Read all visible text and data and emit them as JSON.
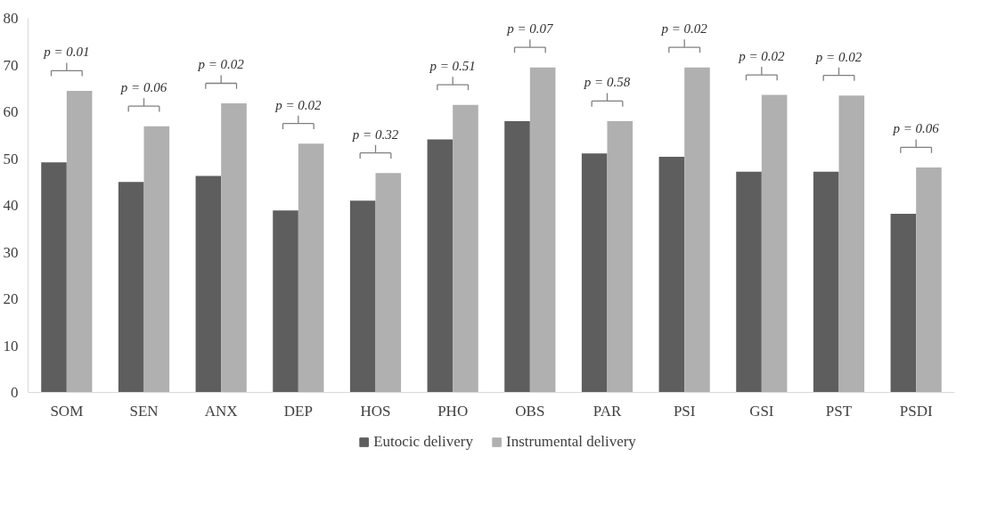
{
  "chart_data": {
    "type": "bar",
    "categories": [
      "SOM",
      "SEN",
      "ANX",
      "DEP",
      "HOS",
      "PHO",
      "OBS",
      "PAR",
      "PSI",
      "GSI",
      "PST",
      "PSDI"
    ],
    "series": [
      {
        "name": "Eutocic delivery",
        "color": "#5e5e5e",
        "values": [
          49.2,
          45.0,
          46.3,
          38.9,
          41.0,
          54.1,
          58.0,
          51.1,
          50.4,
          47.2,
          47.2,
          38.2
        ]
      },
      {
        "name": "Instrumental delivery",
        "color": "#b0b0b0",
        "values": [
          64.5,
          56.9,
          61.8,
          53.2,
          46.9,
          61.5,
          69.5,
          58.0,
          69.5,
          63.6,
          63.5,
          48.1
        ]
      }
    ],
    "ylim": [
      0,
      80
    ],
    "yticks": [
      0,
      10,
      20,
      30,
      40,
      50,
      60,
      70,
      80
    ],
    "grid": false,
    "legend": "bottom",
    "annotations": [
      "p = 0.01",
      "p = 0.06",
      "p = 0.02",
      "p = 0.02",
      "p = 0.32",
      "p = 0.51",
      "p = 0.07",
      "p = 0.58",
      "p = 0.02",
      "p = 0.02",
      "p = 0.02",
      "p = 0.06"
    ]
  }
}
